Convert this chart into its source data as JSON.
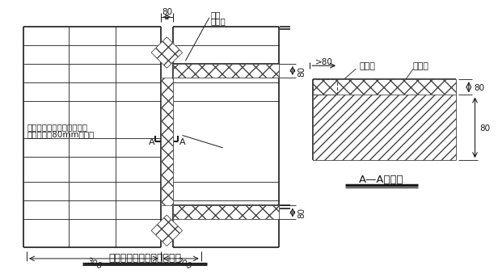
{
  "line_color": "#1a1a1a",
  "title_left": "门窗洞口附加网格布示意图",
  "title_right": "A—A剖面图",
  "label_fujiawanggebu_1": "附加",
  "label_fujiawanggebu_2": "网格布",
  "label_wanggebu": "网格布",
  "label_jisuban": "挤塑板",
  "label_wall_text1": "与墙体接触一面用粘结砂浆",
  "label_wall_text2": "预粘不小于80mm网格布",
  "dim_80_top": "80",
  "dim_80_right1": "80",
  "dim_80_right2": "80",
  "dim_ge80": ">80",
  "dim_300": "300",
  "dim_200": "200",
  "label_A": "A"
}
